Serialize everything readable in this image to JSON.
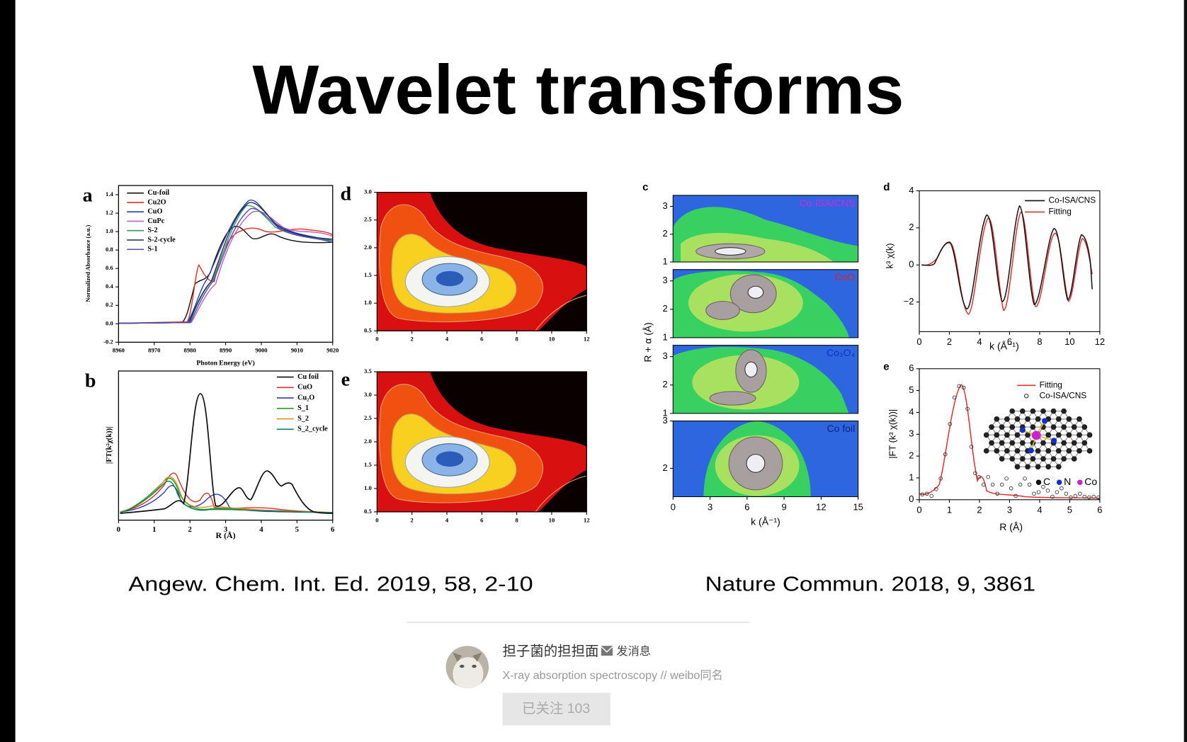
{
  "slide": {
    "title": "Wavelet transforms",
    "citations": [
      "Angew. Chem. Int. Ed. 2019, 58, 2-10",
      "Nature Commun. 2018, 9, 3861"
    ]
  },
  "figures": [
    {
      "letter": "a",
      "xlabel": "Photon Energy (eV)",
      "ylabel": "Normalized Absorbance (a.u.)",
      "xlim": [
        8960,
        9020
      ],
      "ylim": [
        -0.2,
        1.5
      ],
      "xticks": [
        8960,
        8970,
        8980,
        8990,
        9000,
        9010,
        9020
      ],
      "yticks": [
        -0.2,
        {
          "value": 0,
          "label": "0.0"
        },
        0.2,
        0.4,
        0.6,
        0.8,
        {
          "value": 1,
          "label": "1.0"
        },
        1.2,
        1.4
      ],
      "legend": [
        {
          "name": "Cu-foil",
          "color": "#111111"
        },
        {
          "name": "Cu2O",
          "color": "#e03020"
        },
        {
          "name": "CuO",
          "color": "#2a3fb0"
        },
        {
          "name": "CuPc",
          "color": "#c060c0"
        },
        {
          "name": "S-2",
          "color": "#3a9a60"
        },
        {
          "name": "S-2-cycle",
          "color": "#1a2a60"
        },
        {
          "name": "S-1",
          "color": "#5050b0"
        }
      ]
    },
    {
      "letter": "b",
      "xlabel": "R (Å)",
      "ylabel": "|FT(k²χ(k))|",
      "xlim": [
        0,
        6
      ],
      "xticks": [
        0,
        1,
        2,
        3,
        4,
        5,
        6
      ],
      "legend": [
        {
          "name": "Cu foil",
          "color": "#111111"
        },
        {
          "name": "CuO",
          "color": "#e03020"
        },
        {
          "name": "Cu₂O",
          "color": "#2a3fb0"
        },
        {
          "name": "S_1",
          "color": "#20a020"
        },
        {
          "name": "S_2",
          "color": "#e09020"
        },
        {
          "name": "S_2_cycle",
          "color": "#108060"
        }
      ]
    },
    {
      "letter": "d",
      "xlim": [
        0,
        12
      ],
      "ylim": [
        0.5,
        3.0
      ],
      "xticks": [
        0,
        2,
        4,
        6,
        8,
        10,
        12
      ],
      "yticks": [
        0.5,
        {
          "value": 1,
          "label": "1.0"
        },
        1.5,
        {
          "value": 2,
          "label": "2.0"
        },
        2.5,
        {
          "value": 3,
          "label": "3.0"
        }
      ]
    },
    {
      "letter": "e",
      "xlim": [
        0,
        12
      ],
      "ylim": [
        0.5,
        3.5
      ],
      "xticks": [
        0,
        2,
        4,
        6,
        8,
        10,
        12
      ],
      "yticks": [
        0.5,
        {
          "value": 1,
          "label": "1.0"
        },
        1.5,
        {
          "value": 2,
          "label": "2.0"
        },
        2.5,
        {
          "value": 3,
          "label": "3.0"
        },
        3.5
      ]
    },
    {
      "letter": "c",
      "xlabel": "k (Å⁻¹)",
      "ylabel": "R + α (Å)",
      "xlim": [
        0,
        15
      ],
      "xticks": [
        0,
        3,
        6,
        9,
        12,
        15
      ],
      "subpanels": [
        {
          "label": "Co-ISA/CNS",
          "color": "#e020e0",
          "ylim": [
            1,
            3.4
          ],
          "yticks": [
            1,
            2,
            3
          ]
        },
        {
          "label": "CoO",
          "color": "#e02020",
          "ylim": [
            1,
            3.4
          ],
          "yticks": [
            1,
            2,
            3
          ]
        },
        {
          "label": "Co₃O₄",
          "color": "#1030c0",
          "ylim": [
            1,
            3.4
          ],
          "yticks": [
            1,
            2,
            3
          ]
        },
        {
          "label": "Co foil",
          "color": "#102080",
          "ylim": [
            1.4,
            3
          ],
          "yticks": [
            2,
            3
          ]
        }
      ]
    },
    {
      "letter": "d",
      "xlabel": "k (Å⁻¹)",
      "ylabel": "k³ χ(k)",
      "xlim": [
        0,
        12
      ],
      "ylim": [
        -3.6,
        4
      ],
      "xticks": [
        0,
        2,
        4,
        6,
        8,
        10,
        12
      ],
      "yticks": [
        {
          "value": -2,
          "label": "−2"
        },
        0,
        2,
        4
      ],
      "legend": [
        {
          "name": "Co-ISA/CNS",
          "color": "#111111"
        },
        {
          "name": "Fitting",
          "color": "#e03030"
        }
      ]
    },
    {
      "letter": "e",
      "xlabel": "R (Å)",
      "ylabel": "|FT (k³ χ(k))|",
      "xlim": [
        0,
        6
      ],
      "ylim": [
        0,
        6
      ],
      "xticks": [
        0,
        1,
        2,
        3,
        4,
        5,
        6
      ],
      "yticks": [
        0,
        1,
        2,
        3,
        4,
        5,
        6
      ],
      "legend": [
        {
          "name": "Fitting",
          "color": "#e03030",
          "marker": "line"
        },
        {
          "name": "Co-ISA/CNS",
          "color": "#333333",
          "marker": "circle"
        }
      ],
      "atoms": [
        {
          "name": "C",
          "color": "#111111"
        },
        {
          "name": "N",
          "color": "#1030d0"
        },
        {
          "name": "Co",
          "color": "#d020d0"
        }
      ]
    }
  ],
  "profile": {
    "name": "担子菌的担担面",
    "message": "发消息",
    "bio": "X-ray absorption spectroscopy // weibo同名",
    "follow": "已关注 103"
  }
}
